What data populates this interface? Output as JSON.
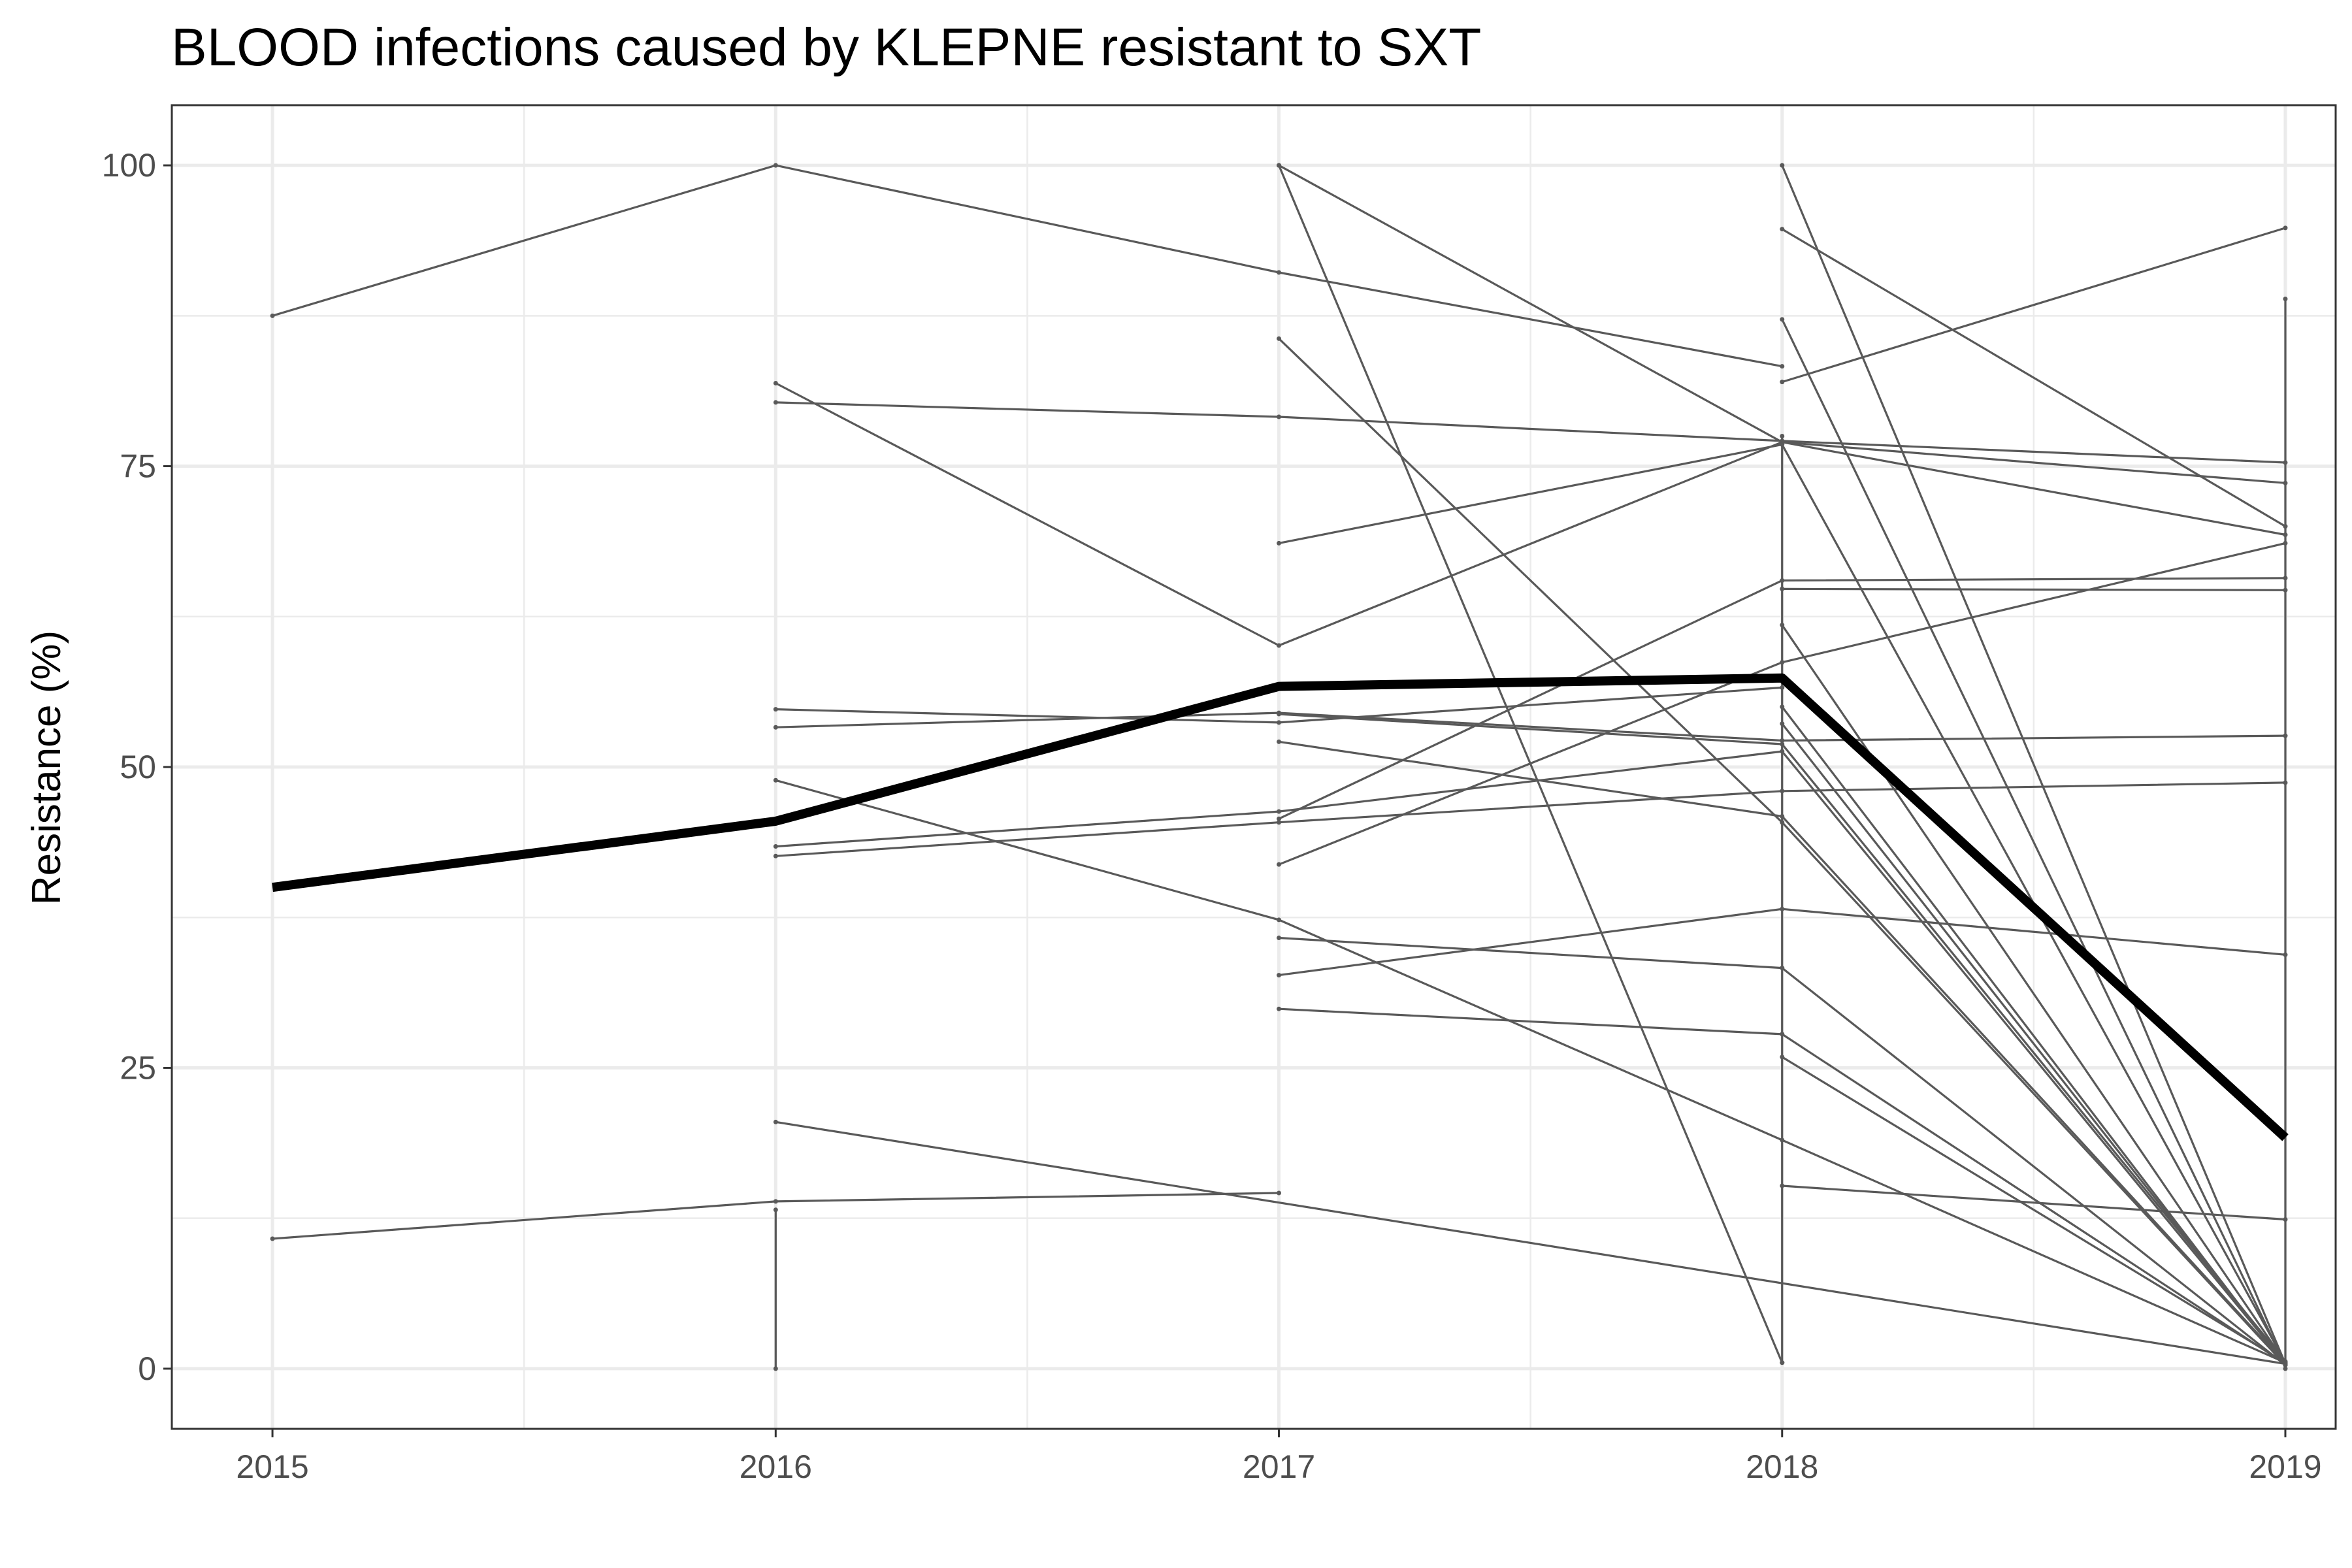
{
  "chart_data": {
    "type": "line",
    "title": "BLOOD infections caused by KLEPNE resistant to SXT",
    "xlabel": "",
    "ylabel": "Resistance (%)",
    "x_ticks": [
      "2015",
      "2016",
      "2017",
      "2018",
      "2019"
    ],
    "y_ticks": [
      "0",
      "25",
      "50",
      "75",
      "100"
    ],
    "xlim": [
      2014.8,
      2019.1
    ],
    "ylim": [
      -5,
      105
    ],
    "grid": true,
    "legend": "none",
    "colors": {
      "series": "#595959",
      "mean": "#000000"
    },
    "series": [
      {
        "x": [
          2015,
          2016,
          2017,
          2018
        ],
        "y": [
          87.5,
          100,
          91.1,
          83.3
        ]
      },
      {
        "x": [
          2015,
          2016,
          2017
        ],
        "y": [
          10.8,
          13.9,
          14.6
        ]
      },
      {
        "x": [
          2016,
          2017,
          2018,
          2019
        ],
        "y": [
          81.9,
          60.1,
          77.0,
          69.3
        ]
      },
      {
        "x": [
          2016,
          2017,
          2018,
          2019
        ],
        "y": [
          80.3,
          79.1,
          77.1,
          75.3
        ]
      },
      {
        "x": [
          2016,
          2017,
          2018
        ],
        "y": [
          54.8,
          53.7,
          56.6
        ]
      },
      {
        "x": [
          2016,
          2017,
          2018,
          2019
        ],
        "y": [
          53.3,
          54.5,
          52.2,
          52.6
        ]
      },
      {
        "x": [
          2016,
          2017,
          2018,
          2019
        ],
        "y": [
          48.9,
          37.3,
          19.0,
          0.5
        ]
      },
      {
        "x": [
          2016,
          2017,
          2018,
          2019
        ],
        "y": [
          43.4,
          46.3,
          51.3,
          0.4
        ]
      },
      {
        "x": [
          2016,
          2017,
          2018,
          2019
        ],
        "y": [
          42.6,
          45.4,
          48.0,
          48.7
        ]
      },
      {
        "x": [
          2016,
          2019
        ],
        "y": [
          20.5,
          0.4
        ]
      },
      {
        "x": [
          2016,
          2016
        ],
        "y": [
          13.2,
          0
        ]
      },
      {
        "x": [
          2017,
          2018,
          2019
        ],
        "y": [
          100,
          77.0,
          73.6
        ]
      },
      {
        "x": [
          2017,
          2018
        ],
        "y": [
          100,
          0.5
        ]
      },
      {
        "x": [
          2017,
          2018,
          2019
        ],
        "y": [
          85.6,
          45.4,
          0.3
        ]
      },
      {
        "x": [
          2017,
          2018,
          2019
        ],
        "y": [
          68.6,
          76.8,
          0.5
        ]
      },
      {
        "x": [
          2017,
          2018,
          2019
        ],
        "y": [
          54.4,
          51.9,
          0.6
        ]
      },
      {
        "x": [
          2017,
          2018,
          2019
        ],
        "y": [
          52.1,
          45.9,
          0.4
        ]
      },
      {
        "x": [
          2017,
          2018,
          2019
        ],
        "y": [
          45.7,
          65.5,
          65.7
        ]
      },
      {
        "x": [
          2017,
          2018,
          2019
        ],
        "y": [
          41.9,
          58.7,
          68.6
        ]
      },
      {
        "x": [
          2017,
          2018,
          2019
        ],
        "y": [
          35.8,
          33.3,
          0.3
        ]
      },
      {
        "x": [
          2017,
          2018,
          2019
        ],
        "y": [
          32.7,
          38.2,
          34.4
        ]
      },
      {
        "x": [
          2017,
          2018,
          2019
        ],
        "y": [
          29.9,
          27.8,
          0.4
        ]
      },
      {
        "x": [
          2018,
          2019
        ],
        "y": [
          100,
          0.4
        ]
      },
      {
        "x": [
          2018,
          2019
        ],
        "y": [
          94.7,
          70.0
        ]
      },
      {
        "x": [
          2018,
          2019
        ],
        "y": [
          82.0,
          94.8
        ]
      },
      {
        "x": [
          2018,
          2019
        ],
        "y": [
          87.2,
          0.3
        ]
      },
      {
        "x": [
          2018,
          2019
        ],
        "y": [
          64.8,
          64.7
        ]
      },
      {
        "x": [
          2018,
          2019
        ],
        "y": [
          61.8,
          0.5
        ]
      },
      {
        "x": [
          2018,
          2019
        ],
        "y": [
          55.0,
          0.3
        ]
      },
      {
        "x": [
          2018,
          2019
        ],
        "y": [
          53.6,
          0.4
        ]
      },
      {
        "x": [
          2018,
          2019
        ],
        "y": [
          25.9,
          0.5
        ]
      },
      {
        "x": [
          2018,
          2019
        ],
        "y": [
          15.2,
          12.4
        ]
      },
      {
        "x": [
          2018,
          2018
        ],
        "y": [
          77.5,
          0.5
        ]
      },
      {
        "x": [
          2019,
          2019
        ],
        "y": [
          88.9,
          0
        ]
      }
    ],
    "mean_series": {
      "x": [
        2015,
        2016,
        2017,
        2018,
        2019
      ],
      "y": [
        40.0,
        45.5,
        56.7,
        57.4,
        19.2
      ]
    }
  }
}
